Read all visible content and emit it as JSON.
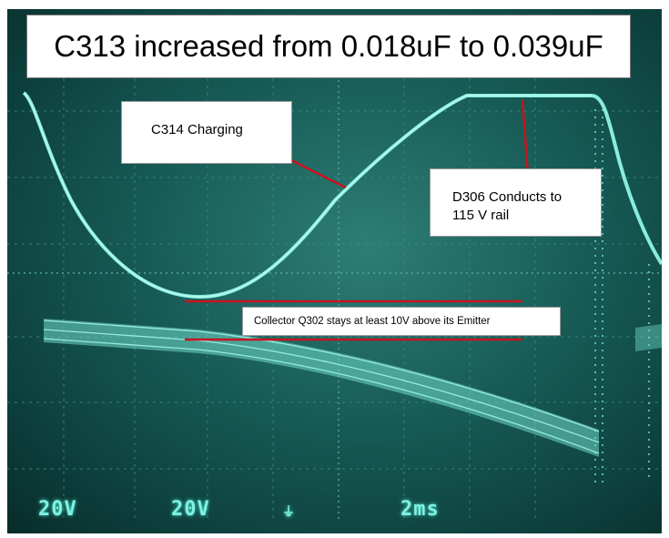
{
  "title": "C313 increased from 0.018uF to 0.039uF",
  "annotations": {
    "c314": "C314 Charging",
    "d306_line1": "D306 Conducts to",
    "d306_line2": "115 V rail",
    "q302": "Collector Q302 stays at least 10V above its Emitter"
  },
  "readouts": {
    "ch1_volts": "20V",
    "ch2_volts": "20V",
    "timebase": "2ms"
  },
  "colors": {
    "trace": "#8ff5e6",
    "screen": "#175a55",
    "callout_line": "#c8141e"
  }
}
